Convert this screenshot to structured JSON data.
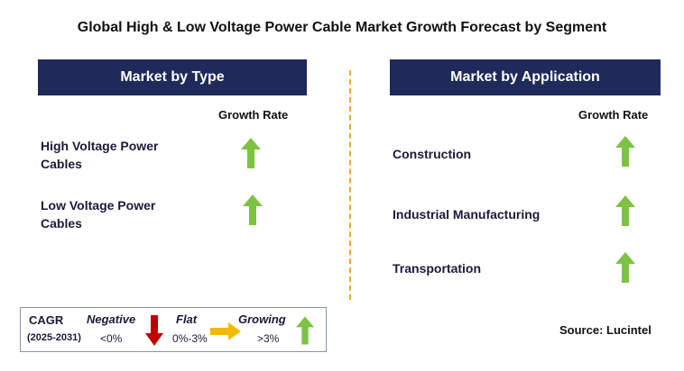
{
  "title": "Global High & Low Voltage Power Cable Market Growth Forecast by Segment",
  "left": {
    "header": "Market by Type",
    "column_label": "Growth Rate",
    "rows": [
      {
        "label_line1": "High Voltage Power",
        "label_line2": "Cables",
        "trend": "growing"
      },
      {
        "label_line1": "Low Voltage Power",
        "label_line2": "Cables",
        "trend": "growing"
      }
    ]
  },
  "right": {
    "header": "Market by Application",
    "column_label": "Growth Rate",
    "rows": [
      {
        "label": "Construction",
        "trend": "growing"
      },
      {
        "label": "Industrial Manufacturing",
        "trend": "growing"
      },
      {
        "label": "Transportation",
        "trend": "growing"
      }
    ]
  },
  "legend": {
    "cagr_label": "CAGR",
    "period": "(2025-2031)",
    "negative_label": "Negative",
    "negative_range": "<0%",
    "flat_label": "Flat",
    "flat_range": "0%-3%",
    "growing_label": "Growing",
    "growing_range": ">3%"
  },
  "source": "Source: Lucintel",
  "colors": {
    "header_bg": "#1f2a5a",
    "growing_arrow": "#7dc242",
    "negative_arrow": "#c00000",
    "flat_arrow": "#f5b800",
    "divider": "#f0a830"
  }
}
